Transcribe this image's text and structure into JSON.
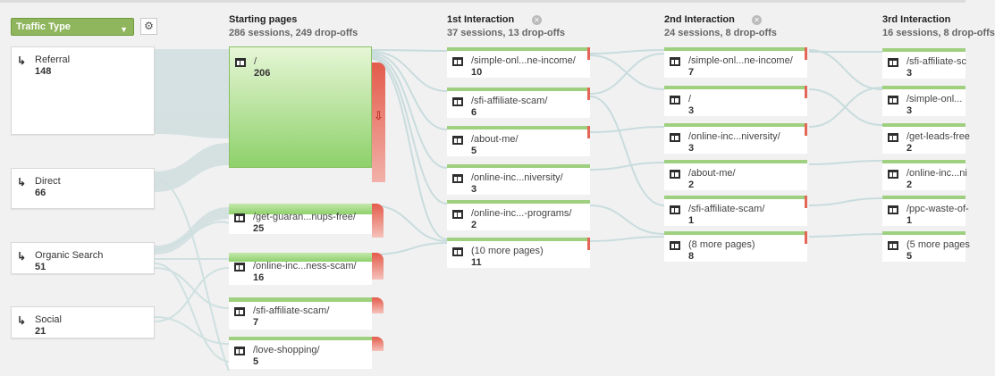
{
  "traffic_type": {
    "label": "Traffic Type"
  },
  "columns": [
    {
      "title": "Starting pages",
      "subtitle": "286 sessions, 249 drop-offs"
    },
    {
      "title": "1st Interaction",
      "subtitle": "37 sessions, 13 drop-offs"
    },
    {
      "title": "2nd Interaction",
      "subtitle": "24 sessions, 8 drop-offs"
    },
    {
      "title": "3rd Interaction",
      "subtitle": "16 sessions, 8 drop-offs"
    }
  ],
  "sources": [
    {
      "name": "Referral",
      "count": "148"
    },
    {
      "name": "Direct",
      "count": "66"
    },
    {
      "name": "Organic Search",
      "count": "51"
    },
    {
      "name": "Social",
      "count": "21"
    }
  ],
  "starting_pages": [
    {
      "page": "/",
      "count": "206"
    },
    {
      "page": "/get-guaran...nups-free/",
      "count": "25"
    },
    {
      "page": "/online-inc...ness-scam/",
      "count": "16"
    },
    {
      "page": "/sfi-affiliate-scam/",
      "count": "7"
    },
    {
      "page": "/love-shopping/",
      "count": "5"
    }
  ],
  "first_interaction": [
    {
      "page": "/simple-onl...ne-income/",
      "count": "10"
    },
    {
      "page": "/sfi-affiliate-scam/",
      "count": "6"
    },
    {
      "page": "/about-me/",
      "count": "5"
    },
    {
      "page": "/online-inc...niversity/",
      "count": "3"
    },
    {
      "page": "/online-inc...-programs/",
      "count": "2"
    },
    {
      "page": "(10 more pages)",
      "count": "11"
    }
  ],
  "second_interaction": [
    {
      "page": "/simple-onl...ne-income/",
      "count": "7"
    },
    {
      "page": "/",
      "count": "3"
    },
    {
      "page": "/online-inc...niversity/",
      "count": "3"
    },
    {
      "page": "/about-me/",
      "count": "2"
    },
    {
      "page": "/sfi-affiliate-scam/",
      "count": "1"
    },
    {
      "page": "(8 more pages)",
      "count": "8"
    }
  ],
  "third_interaction": [
    {
      "page": "/sfi-affiliate-sc",
      "count": "3"
    },
    {
      "page": "/simple-onl...",
      "count": "3"
    },
    {
      "page": "/get-leads-free",
      "count": "2"
    },
    {
      "page": "/online-inc...ni",
      "count": "2"
    },
    {
      "page": "/ppc-waste-of-",
      "count": "1"
    },
    {
      "page": "(5 more pages",
      "count": "5"
    }
  ],
  "colors": {
    "green": "#8ed16a",
    "dropoff": "#e35b4b",
    "flow": "#d2dfe0"
  },
  "icons": {
    "gear": "gear-icon",
    "close": "close-icon",
    "dropoff": "dropoff-arrow-icon",
    "source": "traffic-arrow-icon",
    "page": "page-icon"
  }
}
